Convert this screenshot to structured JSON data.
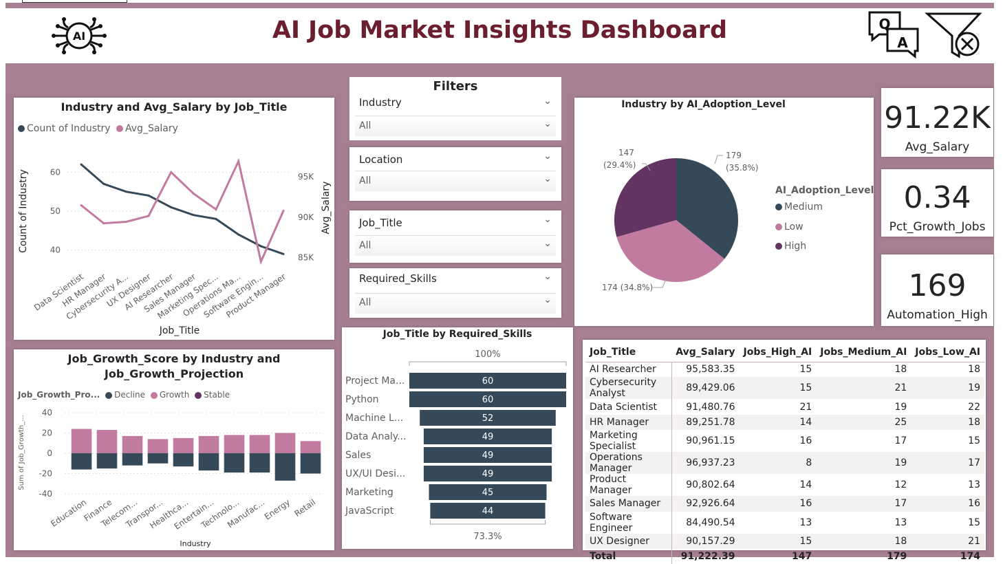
{
  "dashboard_title": "AI Job Market Insights Dashboard",
  "header_icons": [
    "ai-brain-icon",
    "qa-icon",
    "clear-filter-icon"
  ],
  "colors": {
    "dark": "#364958",
    "pink": "#c27ba0",
    "purple": "#633461",
    "title": "#6b1f2e",
    "background": "#a67f93"
  },
  "filters": {
    "title": "Filters",
    "slicers": [
      {
        "name": "Industry",
        "value": "All"
      },
      {
        "name": "Location",
        "value": "All"
      },
      {
        "name": "Job_Title",
        "value": "All"
      },
      {
        "name": "Required_Skills",
        "value": "All"
      }
    ]
  },
  "kpis": [
    {
      "value": "91.22K",
      "label": "Avg_Salary"
    },
    {
      "value": "0.34",
      "label": "Pct_Growth_Jobs"
    },
    {
      "value": "169",
      "label": "Automation_High"
    }
  ],
  "line_chart": {
    "title": "Industry and Avg_Salary by Job_Title",
    "legend": [
      "Count of Industry",
      "Avg_Salary"
    ],
    "xlabel": "Job_Title",
    "ylabel_left": "Count of Industry",
    "ylabel_right": "Avg_Salary",
    "left_ticks": [
      "60",
      "50",
      "40"
    ],
    "right_ticks": [
      "95K",
      "90K",
      "85K"
    ]
  },
  "pie_chart": {
    "title": "Industry by AI_Adoption_Level",
    "legend_title": "AI_Adoption_Level",
    "slice_labels": [
      "179",
      "(35.8%)",
      "174 (34.8%)",
      "147",
      "(29.4%)"
    ]
  },
  "growth_chart": {
    "title_line1": "Job_Growth_Score by Industry and",
    "title_line2": "Job_Growth_Projection",
    "legend_title": "Job_Growth_Pro...",
    "ylabel": "Sum of Job_Growth_...",
    "xlabel": "Industry",
    "y_ticks": [
      "40",
      "20",
      "0",
      "-20",
      "-40"
    ]
  },
  "funnel": {
    "title": "Job_Title by Required_Skills",
    "top_pct": "100%",
    "bottom_pct": "73.3%"
  },
  "table": {
    "headers": [
      "Job_Title",
      "Avg_Salary",
      "Jobs_High_AI",
      "Jobs_Medium_AI",
      "Jobs_Low_AI"
    ],
    "rows": [
      [
        "AI Researcher",
        "95,583.35",
        "15",
        "18",
        "18"
      ],
      [
        "Cybersecurity Analyst",
        "89,429.06",
        "15",
        "21",
        "19"
      ],
      [
        "Data Scientist",
        "91,480.76",
        "21",
        "19",
        "22"
      ],
      [
        "HR Manager",
        "89,251.78",
        "14",
        "25",
        "18"
      ],
      [
        "Marketing Specialist",
        "90,961.15",
        "16",
        "17",
        "15"
      ],
      [
        "Operations Manager",
        "96,937.23",
        "8",
        "19",
        "17"
      ],
      [
        "Product Manager",
        "90,802.64",
        "14",
        "12",
        "13"
      ],
      [
        "Sales Manager",
        "92,926.64",
        "16",
        "17",
        "16"
      ],
      [
        "Software Engineer",
        "84,490.54",
        "13",
        "13",
        "15"
      ],
      [
        "UX Designer",
        "90,157.29",
        "15",
        "18",
        "21"
      ]
    ],
    "total": [
      "Total",
      "91,222.39",
      "147",
      "179",
      "174"
    ]
  },
  "chart_data": [
    {
      "type": "line",
      "title": "Industry and Avg_Salary by Job_Title",
      "xlabel": "Job_Title",
      "ylabel": "Count of Industry",
      "y2label": "Avg_Salary",
      "categories": [
        "Data Scientist",
        "HR Manager",
        "Cybersecurity A...",
        "UX Designer",
        "AI Researcher",
        "Sales Manager",
        "Marketing Spec...",
        "Operations Ma...",
        "Software Engin...",
        "Product Manager"
      ],
      "series": [
        {
          "name": "Count of Industry",
          "axis": "left",
          "values": [
            62,
            57,
            55,
            54,
            51,
            49,
            48,
            44,
            41,
            39
          ]
        },
        {
          "name": "Avg_Salary",
          "axis": "right",
          "values": [
            91480,
            89252,
            89429,
            90157,
            95583,
            92927,
            90961,
            96937,
            84491,
            90803
          ]
        }
      ],
      "ylim": [
        35,
        65
      ],
      "y2lim": [
        83500,
        98000
      ],
      "left_ticks": [
        40,
        50,
        60
      ],
      "right_ticks": [
        85000,
        90000,
        95000
      ]
    },
    {
      "type": "pie",
      "title": "Industry by AI_Adoption_Level",
      "slices": [
        {
          "label": "Medium",
          "value": 179,
          "pct": 35.8
        },
        {
          "label": "Low",
          "value": 174,
          "pct": 34.8
        },
        {
          "label": "High",
          "value": 147,
          "pct": 29.4
        }
      ]
    },
    {
      "type": "bar",
      "title": "Job_Growth_Score by Industry and Job_Growth_Projection",
      "xlabel": "Industry",
      "ylabel": "Sum of Job_Growth_...",
      "categories": [
        "Education",
        "Finance",
        "Telecom...",
        "Transpor...",
        "Healthca...",
        "Entertain...",
        "Technolo...",
        "Manufac...",
        "Energy",
        "Retail"
      ],
      "series": [
        {
          "name": "Decline",
          "values": [
            -16,
            -15,
            -12,
            -10,
            -13,
            -17,
            -19,
            -19,
            -27,
            -20
          ]
        },
        {
          "name": "Growth",
          "values": [
            24,
            23,
            17,
            14,
            15,
            17,
            18,
            18,
            20,
            12
          ]
        },
        {
          "name": "Stable",
          "values": [
            0,
            0,
            0,
            0,
            0,
            0,
            0,
            0,
            0,
            0
          ]
        }
      ],
      "ylim": [
        -40,
        40
      ],
      "y_ticks": [
        40,
        20,
        0,
        -20,
        -40
      ]
    },
    {
      "type": "bar",
      "title": "Job_Title by Required_Skills",
      "categories": [
        "Project Ma...",
        "Python",
        "Machine L...",
        "Data Analy...",
        "Sales",
        "UX/UI Desi...",
        "Marketing",
        "JavaScript"
      ],
      "values": [
        60,
        60,
        52,
        49,
        49,
        49,
        45,
        44
      ],
      "top_pct": "100%",
      "bottom_pct": "73.3%"
    }
  ]
}
